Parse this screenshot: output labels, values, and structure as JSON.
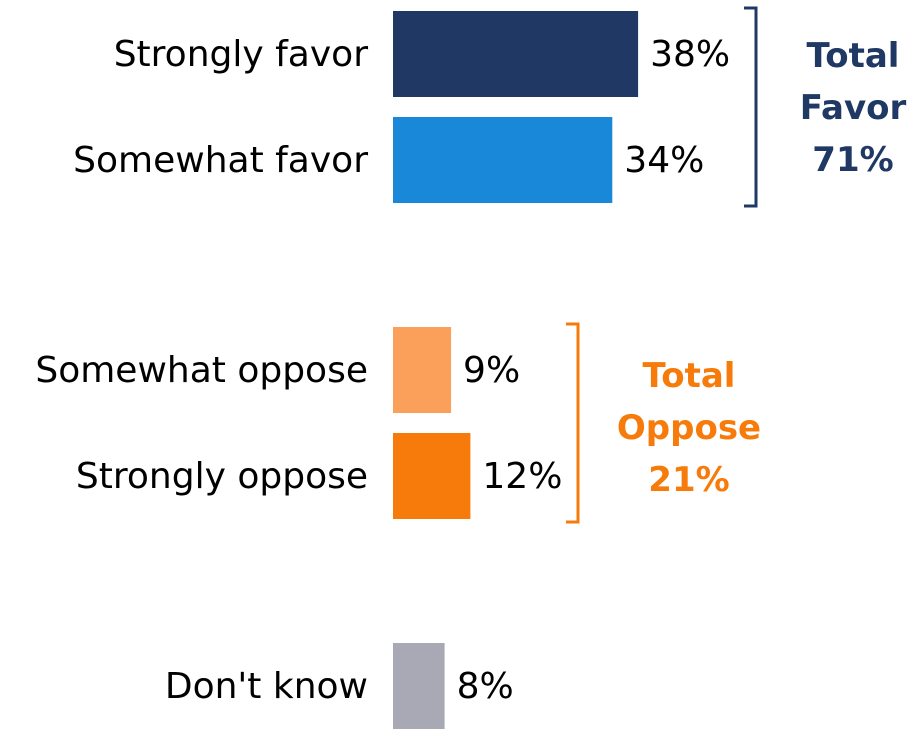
{
  "chart_data": {
    "type": "bar",
    "orientation": "horizontal",
    "categories": [
      "Strongly favor",
      "Somewhat favor",
      "Somewhat oppose",
      "Strongly oppose",
      "Don't know"
    ],
    "values": [
      38,
      34,
      9,
      12,
      8
    ],
    "value_labels": [
      "38%",
      "34%",
      "9%",
      "12%",
      "8%"
    ],
    "colors": [
      "#1f3864",
      "#1a88d8",
      "#fba05b",
      "#f77b0b",
      "#a8a9b4"
    ],
    "groups": [
      {
        "lines": [
          "Total",
          "Favor",
          "71%"
        ],
        "color": "#1f3864",
        "members": [
          0,
          1
        ]
      },
      {
        "lines": [
          "Total",
          "Oppose",
          "21%"
        ],
        "color": "#f77b0b",
        "members": [
          2,
          3
        ]
      }
    ],
    "title": "",
    "xlabel": "",
    "ylabel": "",
    "grid": false,
    "legend": "none"
  }
}
